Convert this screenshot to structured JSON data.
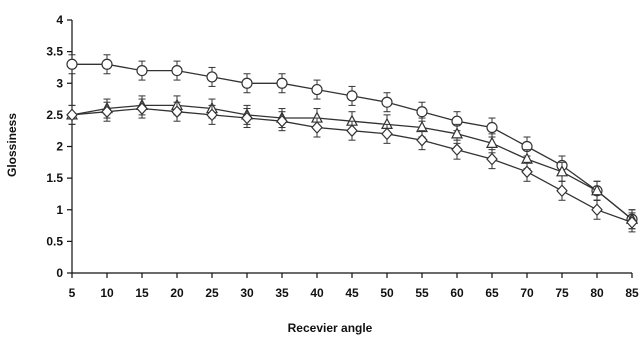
{
  "chart_data": {
    "type": "line",
    "title": "",
    "xlabel": "Recevier angle",
    "ylabel": "Glossiness",
    "x": [
      5,
      10,
      15,
      20,
      25,
      30,
      35,
      40,
      45,
      50,
      55,
      60,
      65,
      70,
      75,
      80,
      85
    ],
    "x_ticks": [
      "5",
      "10",
      "15",
      "20",
      "25",
      "30",
      "35",
      "40",
      "45",
      "50",
      "55",
      "60",
      "65",
      "70",
      "75",
      "80",
      "85"
    ],
    "y_ticks": [
      "0",
      "0.5",
      "1",
      "1.5",
      "2",
      "2.5",
      "3",
      "3.5",
      "4"
    ],
    "ylim": [
      0,
      4
    ],
    "grid": false,
    "legend": "none",
    "series": [
      {
        "marker": "circle",
        "values": [
          3.3,
          3.3,
          3.2,
          3.2,
          3.1,
          3.0,
          3.0,
          2.9,
          2.8,
          2.7,
          2.55,
          2.4,
          2.3,
          2.0,
          1.7,
          1.3,
          0.85
        ],
        "errors": [
          0.15,
          0.15,
          0.15,
          0.15,
          0.15,
          0.15,
          0.15,
          0.15,
          0.15,
          0.15,
          0.15,
          0.15,
          0.15,
          0.15,
          0.15,
          0.15,
          0.15
        ]
      },
      {
        "marker": "triangle",
        "values": [
          2.5,
          2.6,
          2.65,
          2.65,
          2.6,
          2.5,
          2.45,
          2.45,
          2.4,
          2.35,
          2.3,
          2.2,
          2.05,
          1.8,
          1.6,
          1.3,
          0.85
        ],
        "errors": [
          0.15,
          0.15,
          0.15,
          0.15,
          0.15,
          0.15,
          0.15,
          0.15,
          0.15,
          0.15,
          0.15,
          0.15,
          0.15,
          0.15,
          0.15,
          0.15,
          0.15
        ]
      },
      {
        "marker": "diamond",
        "values": [
          2.5,
          2.55,
          2.6,
          2.55,
          2.5,
          2.45,
          2.4,
          2.3,
          2.25,
          2.2,
          2.1,
          1.95,
          1.8,
          1.6,
          1.3,
          1.0,
          0.8
        ],
        "errors": [
          0.15,
          0.15,
          0.15,
          0.15,
          0.15,
          0.15,
          0.15,
          0.15,
          0.15,
          0.15,
          0.15,
          0.15,
          0.15,
          0.15,
          0.15,
          0.15,
          0.15
        ]
      }
    ],
    "colors": {
      "line": "#333333",
      "marker_fill": "#ffffff",
      "axis": "#111111"
    }
  }
}
